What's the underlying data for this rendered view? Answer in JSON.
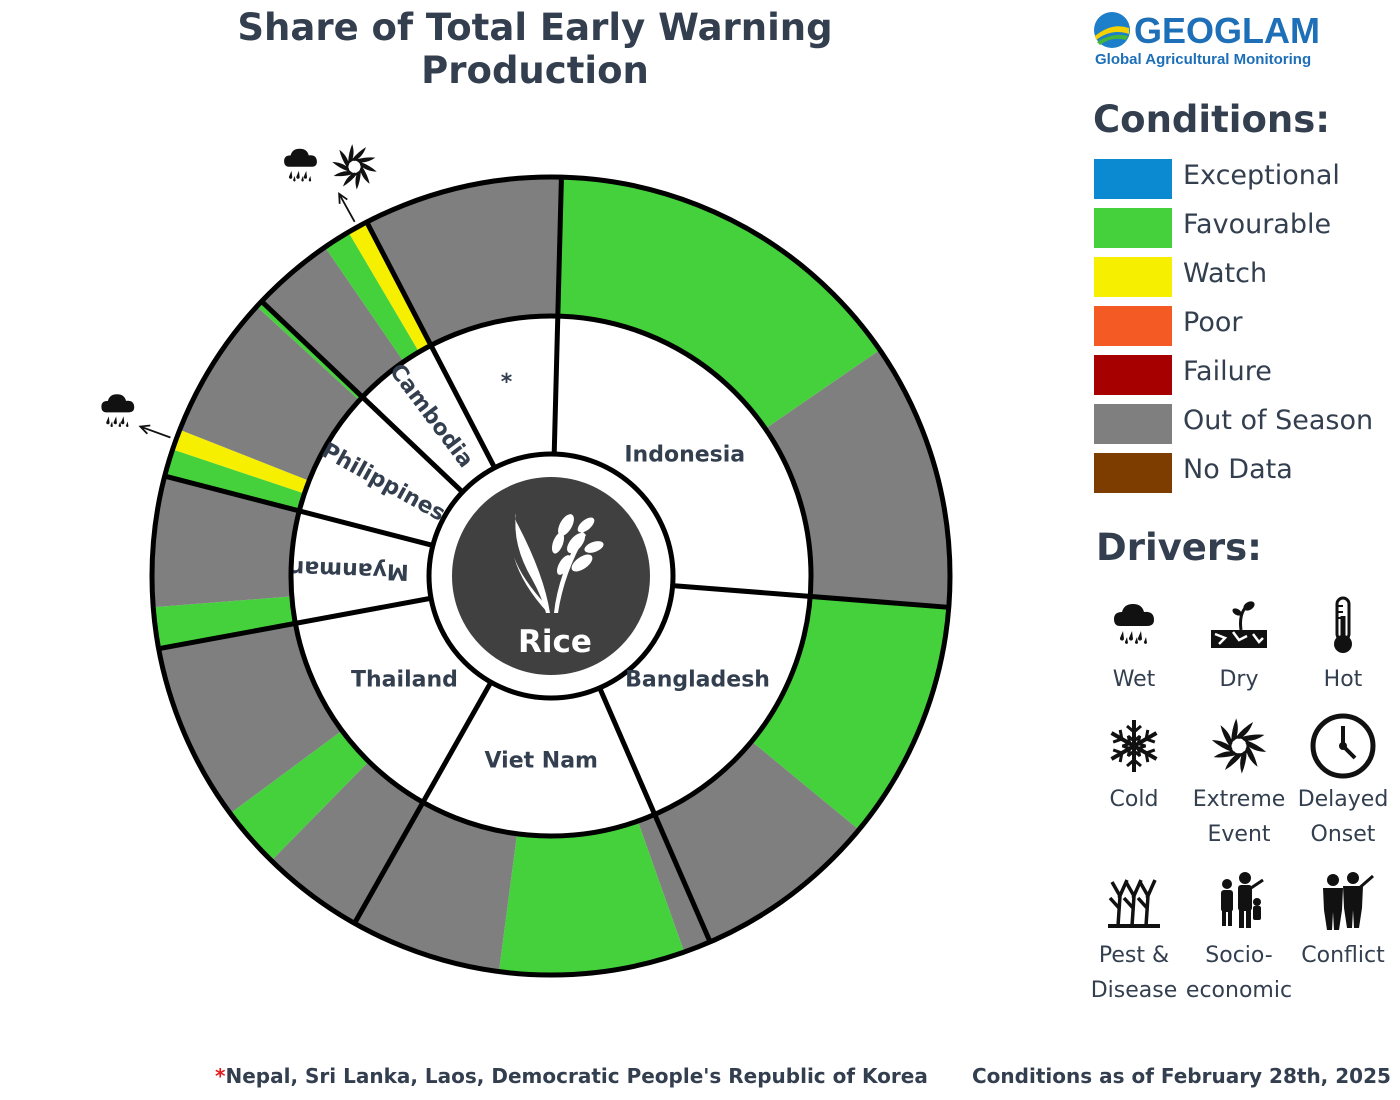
{
  "title": "Share of Total Early Warning Production",
  "logo": {
    "name": "GEOGLAM",
    "tagline": "Global Agricultural Monitoring"
  },
  "center_label": "Rice",
  "conditions_heading": "Conditions:",
  "drivers_heading": "Drivers:",
  "conditions": [
    {
      "label": "Exceptional",
      "color": "#0b8ad1"
    },
    {
      "label": "Favourable",
      "color": "#44d13b"
    },
    {
      "label": "Watch",
      "color": "#f6ef00"
    },
    {
      "label": "Poor",
      "color": "#f45a23"
    },
    {
      "label": "Failure",
      "color": "#a70000"
    },
    {
      "label": "Out of Season",
      "color": "#7f7f7f"
    },
    {
      "label": "No Data",
      "color": "#7e3d00"
    }
  ],
  "drivers": [
    {
      "label": "Wet",
      "icon": "wet-icon"
    },
    {
      "label": "Dry",
      "icon": "dry-icon"
    },
    {
      "label": "Hot",
      "icon": "hot-icon"
    },
    {
      "label": "Cold",
      "icon": "cold-icon"
    },
    {
      "label": "Extreme\nEvent",
      "icon": "extreme-event-icon"
    },
    {
      "label": "Delayed\nOnset",
      "icon": "delayed-onset-icon"
    },
    {
      "label": "Pest &\nDisease",
      "icon": "pest-disease-icon"
    },
    {
      "label": "Socio-\neconomic",
      "icon": "socio-economic-icon"
    },
    {
      "label": "Conflict",
      "icon": "conflict-icon"
    }
  ],
  "footnote_marker": "*",
  "footnote": "Nepal, Sri Lanka, Laos, Democratic People's Republic of Korea",
  "as_of": "Conditions as of February 28th, 2025",
  "chart_data": {
    "type": "sunburst",
    "unit": "share of total production (degrees of arc)",
    "countries": [
      {
        "name": "Indonesia",
        "share": 93,
        "segments": [
          {
            "condition": "Favourable",
            "share": 54
          },
          {
            "condition": "Out of Season",
            "share": 39
          }
        ]
      },
      {
        "name": "Bangladesh",
        "share": 62,
        "segments": [
          {
            "condition": "Favourable",
            "share": 35
          },
          {
            "condition": "Out of Season",
            "share": 27
          }
        ]
      },
      {
        "name": "Viet Nam",
        "share": 53,
        "segments": [
          {
            "condition": "Out of Season",
            "share": 4
          },
          {
            "condition": "Favourable",
            "share": 27
          },
          {
            "condition": "Out of Season",
            "share": 22
          }
        ]
      },
      {
        "name": "Thailand",
        "share": 50,
        "segments": [
          {
            "condition": "Out of Season",
            "share": 15
          },
          {
            "condition": "Favourable",
            "share": 9
          },
          {
            "condition": "Out of Season",
            "share": 26
          }
        ]
      },
      {
        "name": "Myanmar",
        "share": 25,
        "segments": [
          {
            "condition": "Favourable",
            "share": 6
          },
          {
            "condition": "Out of Season",
            "share": 19
          }
        ]
      },
      {
        "name": "Philippines",
        "share": 29,
        "segments": [
          {
            "condition": "Favourable",
            "share": 4
          },
          {
            "condition": "Watch",
            "share": 3,
            "drivers": [
              "wet-icon"
            ]
          },
          {
            "condition": "Out of Season",
            "share": 21
          },
          {
            "condition": "Favourable",
            "share": 1
          }
        ]
      },
      {
        "name": "Cambodia",
        "share": 19,
        "segments": [
          {
            "condition": "Out of Season",
            "share": 12
          },
          {
            "condition": "Favourable",
            "share": 4
          },
          {
            "condition": "Watch",
            "share": 3,
            "drivers": [
              "wet-icon",
              "extreme-event-icon"
            ]
          }
        ]
      },
      {
        "name": "*",
        "share": 29,
        "segments": [
          {
            "condition": "Out of Season",
            "share": 29
          }
        ]
      }
    ]
  }
}
